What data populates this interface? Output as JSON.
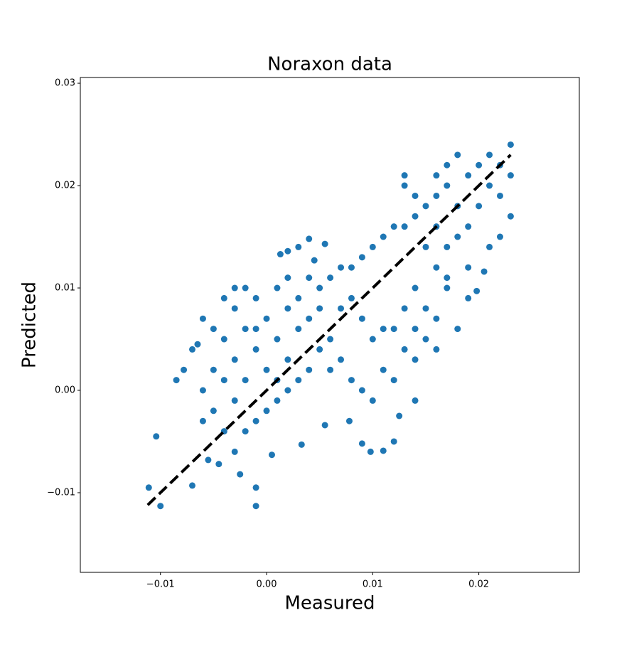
{
  "chart_data": {
    "type": "scatter",
    "title": "Noraxon data",
    "xlabel": "Measured",
    "ylabel": "Predicted",
    "color": "#1f77b4",
    "x": [
      -0.0111,
      -0.01,
      -0.0104,
      -0.001,
      -0.001,
      -0.0025,
      -0.007,
      -0.0055,
      -0.0045,
      0.009,
      0.0098,
      0.011,
      0.012,
      0.0005,
      0.014,
      0.0125,
      0.0078,
      0.0055,
      0.0033,
      -0.0085,
      -0.0078,
      -0.0065,
      0.002,
      0.004,
      0.0055,
      0.003,
      0.0013,
      0.0045,
      0.0205,
      0.0198,
      -0.004,
      -0.003,
      -0.002,
      -0.001,
      0.0,
      -0.005,
      -0.006,
      -0.003,
      -0.002,
      -0.001,
      0.0,
      0.001,
      0.002,
      0.003,
      -0.004,
      -0.005,
      -0.003,
      -0.002,
      -0.001,
      0.001,
      0.002,
      0.004,
      0.005,
      0.003,
      0.002,
      0.001,
      0.003,
      0.004,
      0.005,
      0.006,
      0.007,
      0.008,
      0.009,
      0.01,
      0.011,
      0.012,
      0.013,
      0.006,
      0.007,
      0.008,
      0.009,
      0.01,
      0.011,
      0.012,
      0.013,
      0.007,
      0.008,
      0.009,
      0.01,
      0.011,
      0.012,
      0.013,
      0.014,
      0.014,
      0.015,
      0.016,
      0.015,
      0.016,
      0.017,
      0.018,
      0.017,
      0.016,
      0.015,
      0.014,
      0.013,
      0.013,
      0.014,
      0.018,
      0.019,
      0.02,
      0.021,
      0.022,
      0.022,
      0.023,
      0.023,
      0.021,
      0.02,
      0.019,
      0.018,
      0.017,
      0.016,
      0.023,
      0.022,
      0.021,
      0.019,
      0.017,
      0.016,
      0.015,
      0.016,
      0.014,
      0.018,
      0.019,
      0.017,
      -0.006,
      -0.007,
      -0.005,
      -0.004,
      -0.003,
      -0.002,
      0.001,
      0.0,
      0.006,
      0.005,
      0.004,
      0.002,
      -0.001,
      -0.006,
      -0.004,
      -0.003
    ],
    "y": [
      -0.0095,
      -0.0113,
      -0.0045,
      -0.0113,
      -0.0095,
      -0.0082,
      -0.0093,
      -0.0068,
      -0.0072,
      -0.0052,
      -0.006,
      -0.0059,
      -0.005,
      -0.0063,
      -0.001,
      -0.0025,
      -0.003,
      -0.0034,
      -0.0053,
      0.001,
      0.002,
      0.0045,
      0.0136,
      0.0148,
      0.0143,
      0.014,
      0.0133,
      0.0127,
      0.0116,
      0.0097,
      0.005,
      0.003,
      0.006,
      0.004,
      0.002,
      0.002,
      0.0,
      0.008,
      0.01,
      0.009,
      0.007,
      0.005,
      0.003,
      0.001,
      0.001,
      -0.002,
      -0.001,
      -0.004,
      -0.003,
      -0.001,
      0.0,
      0.002,
      0.004,
      0.006,
      0.008,
      0.01,
      0.009,
      0.007,
      0.01,
      0.011,
      0.012,
      0.012,
      0.013,
      0.014,
      0.015,
      0.016,
      0.016,
      0.005,
      0.003,
      0.001,
      0.0,
      -0.001,
      0.002,
      0.001,
      0.004,
      0.008,
      0.009,
      0.007,
      0.005,
      0.006,
      0.006,
      0.008,
      0.01,
      0.006,
      0.008,
      0.012,
      0.014,
      0.016,
      0.014,
      0.018,
      0.02,
      0.019,
      0.018,
      0.017,
      0.02,
      0.021,
      0.019,
      0.015,
      0.016,
      0.018,
      0.02,
      0.022,
      0.019,
      0.021,
      0.024,
      0.023,
      0.022,
      0.021,
      0.023,
      0.022,
      0.021,
      0.017,
      0.015,
      0.014,
      0.012,
      0.01,
      0.007,
      0.005,
      0.004,
      0.003,
      0.006,
      0.009,
      0.011,
      0.007,
      0.004,
      0.006,
      0.009,
      0.01,
      0.001,
      0.001,
      -0.002,
      0.002,
      0.008,
      0.011,
      0.011,
      0.006,
      -0.003,
      -0.004,
      -0.006
    ],
    "fit_line": {
      "x": [
        -0.0112,
        0.023
      ],
      "y": [
        -0.0112,
        0.023
      ],
      "color": "#000000",
      "dashed": true
    },
    "xlim": [
      -0.01755,
      0.02947
    ],
    "ylim": [
      -0.01778,
      0.03056
    ],
    "xticks": [
      {
        "value": -0.01,
        "label": "−0.01"
      },
      {
        "value": 0,
        "label": "0.00"
      },
      0.01,
      0.02
    ],
    "yticks": [
      {
        "value": -0.01,
        "label": "−0.01"
      },
      {
        "value": 0,
        "label": "0.00"
      },
      0.01,
      0.02,
      0.03
    ],
    "grid": false
  }
}
